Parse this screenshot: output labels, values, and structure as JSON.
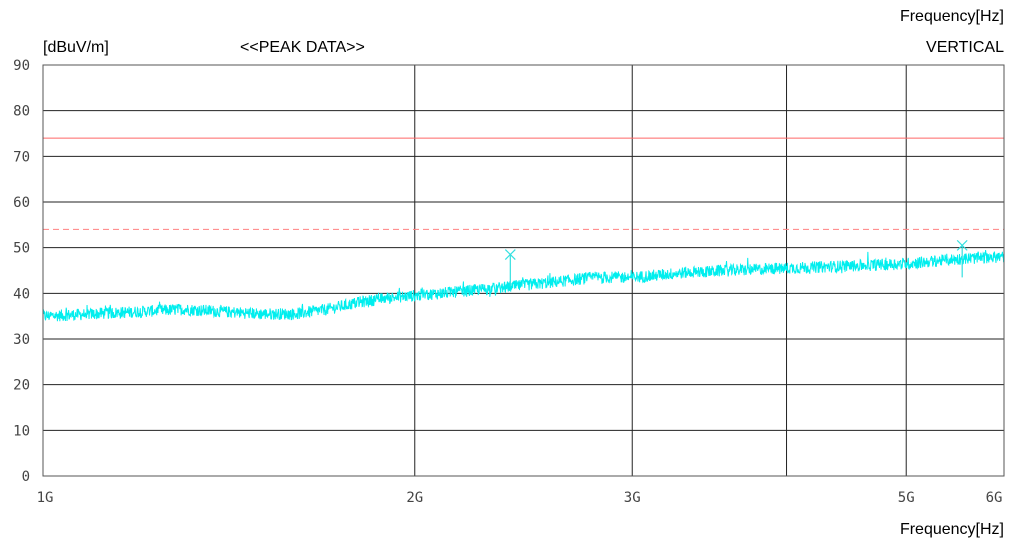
{
  "chart_data": {
    "type": "line",
    "title": "<<PEAK DATA>>",
    "xlabel": "Frequency[Hz]",
    "ylabel": "[dBuV/m]",
    "x_scale": "log",
    "xlim": [
      "1G",
      "6G"
    ],
    "ylim": [
      0,
      90
    ],
    "y_ticks": [
      "0",
      "10",
      "20",
      "30",
      "40",
      "50",
      "60",
      "70",
      "80",
      "90"
    ],
    "x_ticks": [
      {
        "label": "1G",
        "value_ghz": 1
      },
      {
        "label": "2G",
        "value_ghz": 2
      },
      {
        "label": "3G",
        "value_ghz": 3
      },
      {
        "label": "5G",
        "value_ghz": 5
      },
      {
        "label": "6G",
        "value_ghz": 6
      }
    ],
    "x_gridlines_ghz": [
      2,
      3,
      4,
      5
    ],
    "grid": true,
    "legend": {
      "label": "VERTICAL",
      "placement": "top-right",
      "color": "#33ffff"
    },
    "top_label": "Frequency[Hz]",
    "limit_lines": [
      {
        "value": 74,
        "color": "#ff6666",
        "style": "solid"
      },
      {
        "value": 54,
        "color": "#ff8080",
        "style": "dashed"
      }
    ],
    "series": [
      {
        "name": "VERTICAL",
        "color": "#00eeee",
        "x_ghz": [
          1.0,
          1.1,
          1.2,
          1.3,
          1.4,
          1.5,
          1.6,
          1.7,
          1.8,
          1.9,
          2.0,
          2.2,
          2.4,
          2.6,
          2.8,
          3.0,
          3.3,
          3.6,
          4.0,
          4.5,
          5.0,
          5.5,
          6.0
        ],
        "y_dbuv": [
          35.0,
          35.5,
          36.0,
          36.5,
          36.0,
          35.5,
          35.5,
          36.5,
          38.0,
          39.0,
          39.5,
          40.5,
          41.5,
          42.5,
          43.5,
          43.5,
          44.5,
          45.0,
          45.5,
          46.0,
          46.5,
          47.5,
          48.0
        ]
      }
    ],
    "markers": [
      {
        "x_ghz": 2.39,
        "y_dbuv": 48.5,
        "color": "#33e0e0"
      },
      {
        "x_ghz": 5.55,
        "y_dbuv": 50.5,
        "color": "#33e0e0"
      }
    ]
  }
}
